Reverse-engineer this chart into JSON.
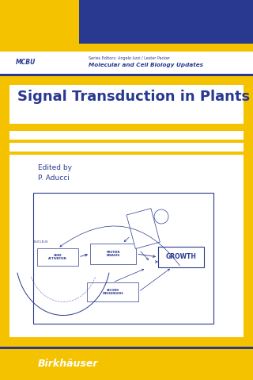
{
  "bg_yellow": "#F5C200",
  "bg_blue": "#2A3990",
  "bg_white": "#FFFFFF",
  "text_dark_blue": "#2A3990",
  "title": "Signal Transduction in Plants",
  "edited_by": "Edited by",
  "author": "P. Aducci",
  "series_short": "MCBU",
  "series_editors": "Series Editors: Angelo Azzi / Lester Packer",
  "series_full": "Molecular and Cell Biology Updates",
  "publisher": "Birkhäuser"
}
